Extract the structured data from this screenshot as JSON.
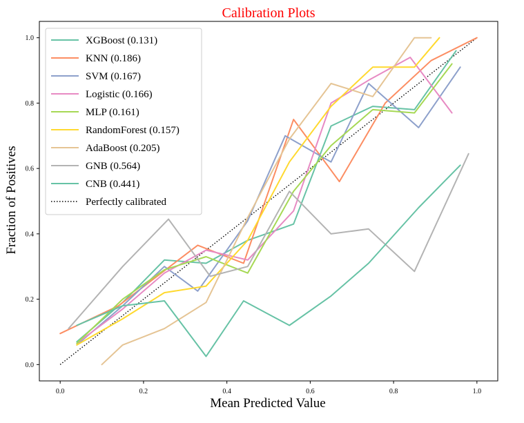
{
  "colors": {
    "title": "#ff0000",
    "axis": "#000000",
    "legend_border": "#cccccc",
    "reference": "#000000"
  },
  "chart_data": {
    "type": "line",
    "title": "Calibration Plots",
    "xlabel": "Mean Predicted Value",
    "ylabel": "Fraction of Positives",
    "xlim": [
      -0.05,
      1.05
    ],
    "ylim": [
      -0.05,
      1.05
    ],
    "xticks": [
      "0.0",
      "0.2",
      "0.4",
      "0.6",
      "0.8",
      "1.0"
    ],
    "yticks": [
      "0.0",
      "0.2",
      "0.4",
      "0.6",
      "0.8",
      "1.0"
    ],
    "grid": false,
    "legend_position": "upper-left",
    "series": [
      {
        "name": "XGBoost (0.131)",
        "color": "#66c2a5",
        "x": [
          0.04,
          0.15,
          0.25,
          0.35,
          0.45,
          0.56,
          0.65,
          0.75,
          0.85,
          0.95
        ],
        "y": [
          0.07,
          0.19,
          0.32,
          0.31,
          0.38,
          0.43,
          0.73,
          0.79,
          0.78,
          0.96
        ]
      },
      {
        "name": "KNN (0.186)",
        "color": "#fc8d62",
        "x": [
          0.0,
          0.14,
          0.33,
          0.44,
          0.56,
          0.67,
          0.78,
          0.89,
          1.0
        ],
        "y": [
          0.095,
          0.18,
          0.365,
          0.31,
          0.75,
          0.56,
          0.8,
          0.93,
          1.0
        ]
      },
      {
        "name": "SVM (0.167)",
        "color": "#8da0cb",
        "x": [
          0.04,
          0.15,
          0.25,
          0.33,
          0.45,
          0.54,
          0.65,
          0.74,
          0.86,
          0.96
        ],
        "y": [
          0.06,
          0.18,
          0.3,
          0.225,
          0.44,
          0.7,
          0.62,
          0.86,
          0.725,
          0.91
        ]
      },
      {
        "name": "Logistic (0.166)",
        "color": "#e78ac3",
        "x": [
          0.04,
          0.15,
          0.25,
          0.35,
          0.45,
          0.56,
          0.65,
          0.74,
          0.84,
          0.94
        ],
        "y": [
          0.065,
          0.17,
          0.28,
          0.35,
          0.32,
          0.47,
          0.8,
          0.87,
          0.94,
          0.77
        ]
      },
      {
        "name": "MLP (0.161)",
        "color": "#a6d854",
        "x": [
          0.04,
          0.15,
          0.25,
          0.35,
          0.45,
          0.56,
          0.65,
          0.75,
          0.85,
          0.94
        ],
        "y": [
          0.065,
          0.2,
          0.29,
          0.33,
          0.28,
          0.53,
          0.67,
          0.78,
          0.77,
          0.92
        ]
      },
      {
        "name": "RandomForest (0.157)",
        "color": "#ffd92f",
        "x": [
          0.04,
          0.15,
          0.25,
          0.35,
          0.45,
          0.55,
          0.65,
          0.75,
          0.85,
          0.91
        ],
        "y": [
          0.06,
          0.14,
          0.22,
          0.24,
          0.38,
          0.62,
          0.79,
          0.91,
          0.91,
          1.0
        ]
      },
      {
        "name": "AdaBoost (0.205)",
        "color": "#e5c494",
        "x": [
          0.1,
          0.15,
          0.25,
          0.35,
          0.45,
          0.55,
          0.65,
          0.75,
          0.85,
          0.89
        ],
        "y": [
          0.0,
          0.06,
          0.11,
          0.19,
          0.45,
          0.69,
          0.86,
          0.82,
          1.0,
          1.0
        ]
      },
      {
        "name": "GNB (0.564)",
        "color": "#b3b3b3",
        "x": [
          0.02,
          0.15,
          0.26,
          0.36,
          0.45,
          0.55,
          0.65,
          0.74,
          0.85,
          0.98
        ],
        "y": [
          0.11,
          0.3,
          0.445,
          0.27,
          0.3,
          0.53,
          0.4,
          0.415,
          0.285,
          0.645
        ]
      },
      {
        "name": "CNB (0.441)",
        "color": "#66c2a5",
        "x": [
          0.04,
          0.15,
          0.25,
          0.35,
          0.44,
          0.55,
          0.65,
          0.74,
          0.86,
          0.96
        ],
        "y": [
          0.12,
          0.18,
          0.195,
          0.025,
          0.195,
          0.12,
          0.21,
          0.31,
          0.48,
          0.61
        ]
      }
    ],
    "reference_line": {
      "name": "Perfectly calibrated",
      "style": "dotted",
      "x": [
        0,
        1
      ],
      "y": [
        0,
        1
      ]
    }
  }
}
